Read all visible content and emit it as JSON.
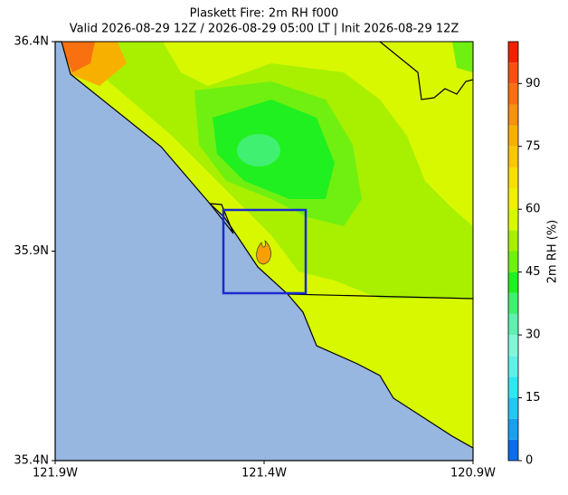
{
  "chart_data": {
    "type": "contour-map",
    "title": "Plaskett Fire: 2m RH f000",
    "subtitle": "Valid 2026-08-29 12Z / 2026-08-29 05:00 LT | Init 2026-08-29 12Z",
    "xlim": [
      -121.9,
      -120.9
    ],
    "ylim": [
      35.4,
      36.4
    ],
    "xticks": [
      {
        "value": -121.9,
        "label": "121.9W"
      },
      {
        "value": -121.4,
        "label": "121.4W"
      },
      {
        "value": -120.9,
        "label": "120.9W"
      }
    ],
    "yticks": [
      {
        "value": 35.4,
        "label": "35.4N"
      },
      {
        "value": 35.9,
        "label": "35.9N"
      },
      {
        "value": 36.4,
        "label": "36.4N"
      }
    ],
    "colorbar": {
      "label": "2m RH (%)",
      "lim": [
        0,
        100
      ],
      "ticks": [
        0,
        15,
        30,
        45,
        60,
        75,
        90
      ],
      "levels": [
        0,
        5,
        10,
        15,
        20,
        25,
        30,
        35,
        40,
        45,
        50,
        55,
        60,
        65,
        70,
        75,
        80,
        85,
        90,
        95,
        100
      ],
      "colors": [
        "#0a6ee8",
        "#1aa0f0",
        "#22c8f0",
        "#2ee8f0",
        "#60f0e8",
        "#80f8d8",
        "#60f0b0",
        "#40f070",
        "#20f020",
        "#70f010",
        "#a8f000",
        "#d8f800",
        "#f0f000",
        "#f8e000",
        "#f8c800",
        "#f8b000",
        "#f89010",
        "#f87010",
        "#f85010",
        "#f02000"
      ]
    }
  }
}
